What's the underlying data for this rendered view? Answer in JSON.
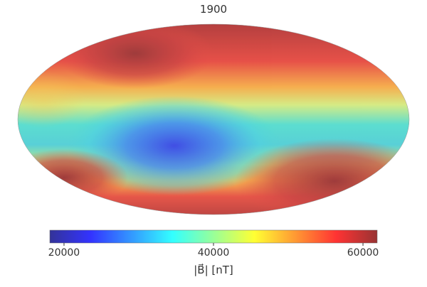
{
  "title": "1900",
  "colorbar": {
    "lim": [
      18100,
      61900
    ],
    "ticks": [
      20000,
      40000,
      60000
    ],
    "label": "|B⃗| [nT]",
    "colors": [
      "#00007f",
      "#0000ff",
      "#007fff",
      "#00ffff",
      "#7fff7f",
      "#ffff00",
      "#ff7f00",
      "#ff0000",
      "#7f0000"
    ]
  }
}
